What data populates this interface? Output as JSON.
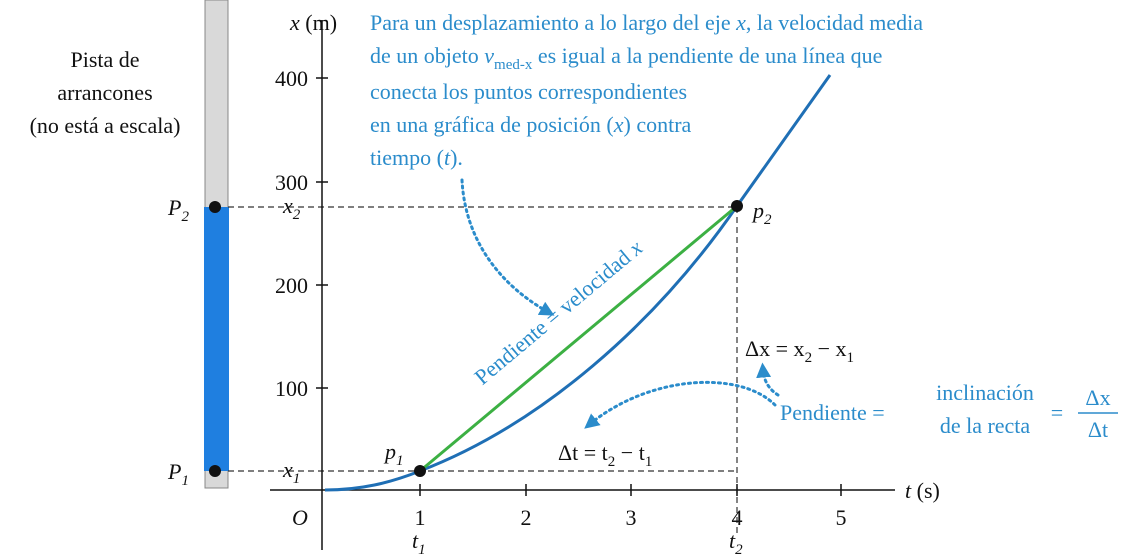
{
  "track": {
    "label": [
      "Pista de",
      "arrancones",
      "(no está a escala)"
    ],
    "p1": {
      "main": "P",
      "sub": "1"
    },
    "p2": {
      "main": "P",
      "sub": "2"
    }
  },
  "axes": {
    "y_label": {
      "var": "x",
      "unit": " (m)"
    },
    "x_label": {
      "var": "t",
      "unit": " (s)"
    },
    "origin": "O",
    "yticks": [
      "100",
      "200",
      "300",
      "400"
    ],
    "xticks": [
      "1",
      "2",
      "3",
      "4",
      "5"
    ],
    "x1": {
      "main": "x",
      "sub": "1"
    },
    "x2": {
      "main": "x",
      "sub": "2"
    },
    "t1": {
      "main": "t",
      "sub": "1"
    },
    "t2": {
      "main": "t",
      "sub": "2"
    }
  },
  "points": {
    "p1": {
      "main": "p",
      "sub": "1"
    },
    "p2": {
      "main": "p",
      "sub": "2"
    }
  },
  "annotation": {
    "l1": [
      "Para un desplazamiento a lo largo del eje ",
      "x",
      ", la velocidad media"
    ],
    "l2": [
      "de un objeto ",
      "v",
      "med-x",
      " es igual a la pendiente de una línea que"
    ],
    "l3": [
      "conecta los puntos correspondientes"
    ],
    "l4": [
      "en una gráfica de posición (",
      "x",
      ") contra"
    ],
    "l5": [
      "tiempo (",
      "t",
      ")."
    ]
  },
  "slope_label": [
    "Pendiente = velocidad ",
    "x"
  ],
  "delta_x": [
    "Δx = x",
    "2",
    " − x",
    "1"
  ],
  "delta_t": [
    "Δt = t",
    "2",
    " − t",
    "1"
  ],
  "formula": {
    "lead": "Pendiente =",
    "words": [
      "inclinación",
      "de la recta"
    ],
    "eq": "=",
    "num": "Δx",
    "den": "Δt"
  }
}
